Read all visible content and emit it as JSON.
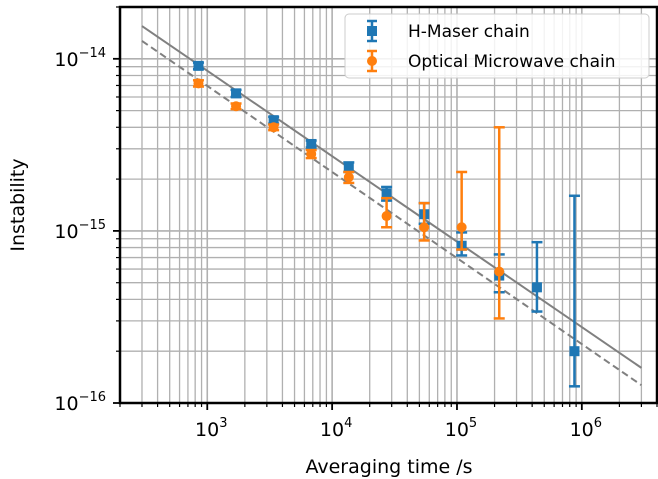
{
  "chart_data": {
    "type": "scatter",
    "title": "",
    "xlabel": "Averaging time /s",
    "ylabel": "Instability",
    "xscale": "log",
    "yscale": "log",
    "xlim": [
      200,
      4000000
    ],
    "ylim": [
      1e-16,
      2e-14
    ],
    "x_ticks": [
      {
        "value": 1000,
        "base": "10",
        "exp": "3"
      },
      {
        "value": 10000,
        "base": "10",
        "exp": "4"
      },
      {
        "value": 100000,
        "base": "10",
        "exp": "5"
      },
      {
        "value": 1000000,
        "base": "10",
        "exp": "6"
      }
    ],
    "y_ticks": [
      {
        "value": 1e-14,
        "base": "10",
        "exp": "−14"
      },
      {
        "value": 1e-15,
        "base": "10",
        "exp": "−15"
      },
      {
        "value": 1e-16,
        "base": "10",
        "exp": "−16"
      }
    ],
    "grid": true,
    "legend_position": "top-right",
    "series": [
      {
        "name": "H-Maser chain",
        "color": "#1f77b4",
        "marker": "square",
        "points": [
          {
            "x": 850,
            "y": 9.1e-15,
            "lo": 8.7e-15,
            "hi": 9.5e-15
          },
          {
            "x": 1700,
            "y": 6.3e-15,
            "lo": 6e-15,
            "hi": 6.6e-15
          },
          {
            "x": 3400,
            "y": 4.4e-15,
            "lo": 4.2e-15,
            "hi": 4.6e-15
          },
          {
            "x": 6800,
            "y": 3.2e-15,
            "lo": 3.05e-15,
            "hi": 3.35e-15
          },
          {
            "x": 13600,
            "y": 2.35e-15,
            "lo": 2.2e-15,
            "hi": 2.5e-15
          },
          {
            "x": 27300,
            "y": 1.65e-15,
            "lo": 1.5e-15,
            "hi": 1.8e-15
          },
          {
            "x": 54600,
            "y": 1.25e-15,
            "lo": 1.1e-15,
            "hi": 1.45e-15
          },
          {
            "x": 109000,
            "y": 8.2e-16,
            "lo": 7.2e-16,
            "hi": 9.8e-16
          },
          {
            "x": 218000,
            "y": 5.5e-16,
            "lo": 4.4e-16,
            "hi": 7.3e-16
          },
          {
            "x": 437000,
            "y": 4.7e-16,
            "lo": 3.4e-16,
            "hi": 8.6e-16
          },
          {
            "x": 873000,
            "y": 2e-16,
            "lo": 1.25e-16,
            "hi": 1.6e-15
          }
        ]
      },
      {
        "name": "Optical Microwave chain",
        "color": "#ff7f0e",
        "marker": "circle",
        "points": [
          {
            "x": 850,
            "y": 7.2e-15,
            "lo": 6.9e-15,
            "hi": 7.5e-15
          },
          {
            "x": 1700,
            "y": 5.3e-15,
            "lo": 5.1e-15,
            "hi": 5.5e-15
          },
          {
            "x": 3400,
            "y": 4e-15,
            "lo": 3.85e-15,
            "hi": 4.15e-15
          },
          {
            "x": 6800,
            "y": 2.8e-15,
            "lo": 2.65e-15,
            "hi": 2.95e-15
          },
          {
            "x": 13600,
            "y": 2.05e-15,
            "lo": 1.9e-15,
            "hi": 2.2e-15
          },
          {
            "x": 27300,
            "y": 1.22e-15,
            "lo": 1.05e-15,
            "hi": 1.55e-15
          },
          {
            "x": 54600,
            "y": 1.05e-15,
            "lo": 8.8e-16,
            "hi": 1.45e-15
          },
          {
            "x": 109000,
            "y": 1.05e-15,
            "lo": 7.8e-16,
            "hi": 2.2e-15
          },
          {
            "x": 218000,
            "y": 5.8e-16,
            "lo": 3.1e-16,
            "hi": 4e-15
          }
        ]
      }
    ],
    "reference_lines": [
      {
        "style": "solid",
        "color": "#808080",
        "x": [
          300,
          3000000
        ],
        "y": [
          1.55e-14,
          1.6e-16
        ]
      },
      {
        "style": "dashed",
        "color": "#808080",
        "x": [
          300,
          3000000
        ],
        "y": [
          1.27e-14,
          1.27e-16
        ]
      }
    ]
  }
}
